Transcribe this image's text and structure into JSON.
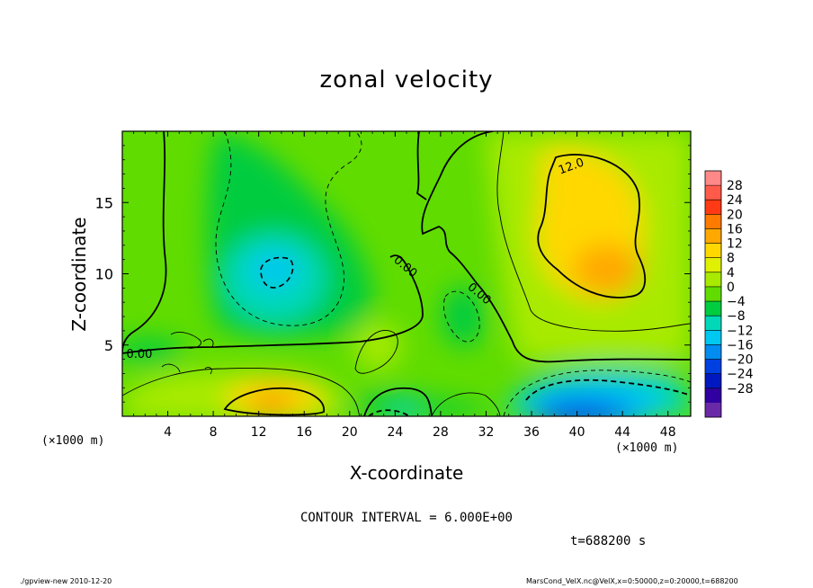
{
  "chart_data": {
    "type": "heatmap",
    "title": "zonal velocity",
    "xlabel": "X-coordinate",
    "ylabel": "Z-coordinate",
    "x_unit_label": "(×1000 m)",
    "xlim": [
      0,
      50
    ],
    "ylim": [
      0,
      20
    ],
    "x_ticks": [
      4,
      8,
      12,
      16,
      20,
      24,
      28,
      32,
      36,
      40,
      44,
      48
    ],
    "y_ticks": [
      5,
      10,
      15
    ],
    "colorbar": {
      "levels": [
        -28,
        -24,
        -20,
        -16,
        -12,
        -8,
        -4,
        0,
        4,
        8,
        12,
        16,
        20,
        24,
        28
      ],
      "labels": [
        "28",
        "24",
        "20",
        "16",
        "12",
        "8",
        "4",
        "0",
        "−4",
        "−8",
        "−12",
        "−16",
        "−20",
        "−24",
        "−28"
      ],
      "colors": [
        "#ff8888",
        "#ff5a4a",
        "#ff3a14",
        "#ff7a00",
        "#ffa800",
        "#ffd800",
        "#e0f000",
        "#a8ea00",
        "#60dc00",
        "#00cc40",
        "#00d8b8",
        "#00c8f0",
        "#008cf0",
        "#0040e0",
        "#0018c0",
        "#3000a0",
        "#6a2aa8"
      ]
    },
    "contour_labels": [
      {
        "text": "0.00",
        "x": 1.5,
        "y": 4.1
      },
      {
        "text": "0.00",
        "x": 24.7,
        "y": 10.3
      },
      {
        "text": "0.00",
        "x": 31.2,
        "y": 8.4
      },
      {
        "text": "12.0",
        "x": 39.6,
        "y": 17.3
      }
    ],
    "features": [
      {
        "kind": "min",
        "x": 13.5,
        "y": 10.0,
        "value": -12
      },
      {
        "kind": "max",
        "x": 42,
        "y": 12,
        "value": 14
      },
      {
        "kind": "max",
        "x": 13.5,
        "y": 1.2,
        "value": 16
      },
      {
        "kind": "min",
        "x": 42,
        "y": 0.8,
        "value": -22
      }
    ],
    "contour_interval": "CONTOUR INTERVAL = 6.000E+00",
    "time": "t=688200 s"
  },
  "footer": {
    "left": "./gpview-new  2010-12-20",
    "right": "MarsCond_VelX.nc@VelX,x=0:50000,z=0:20000,t=688200"
  }
}
